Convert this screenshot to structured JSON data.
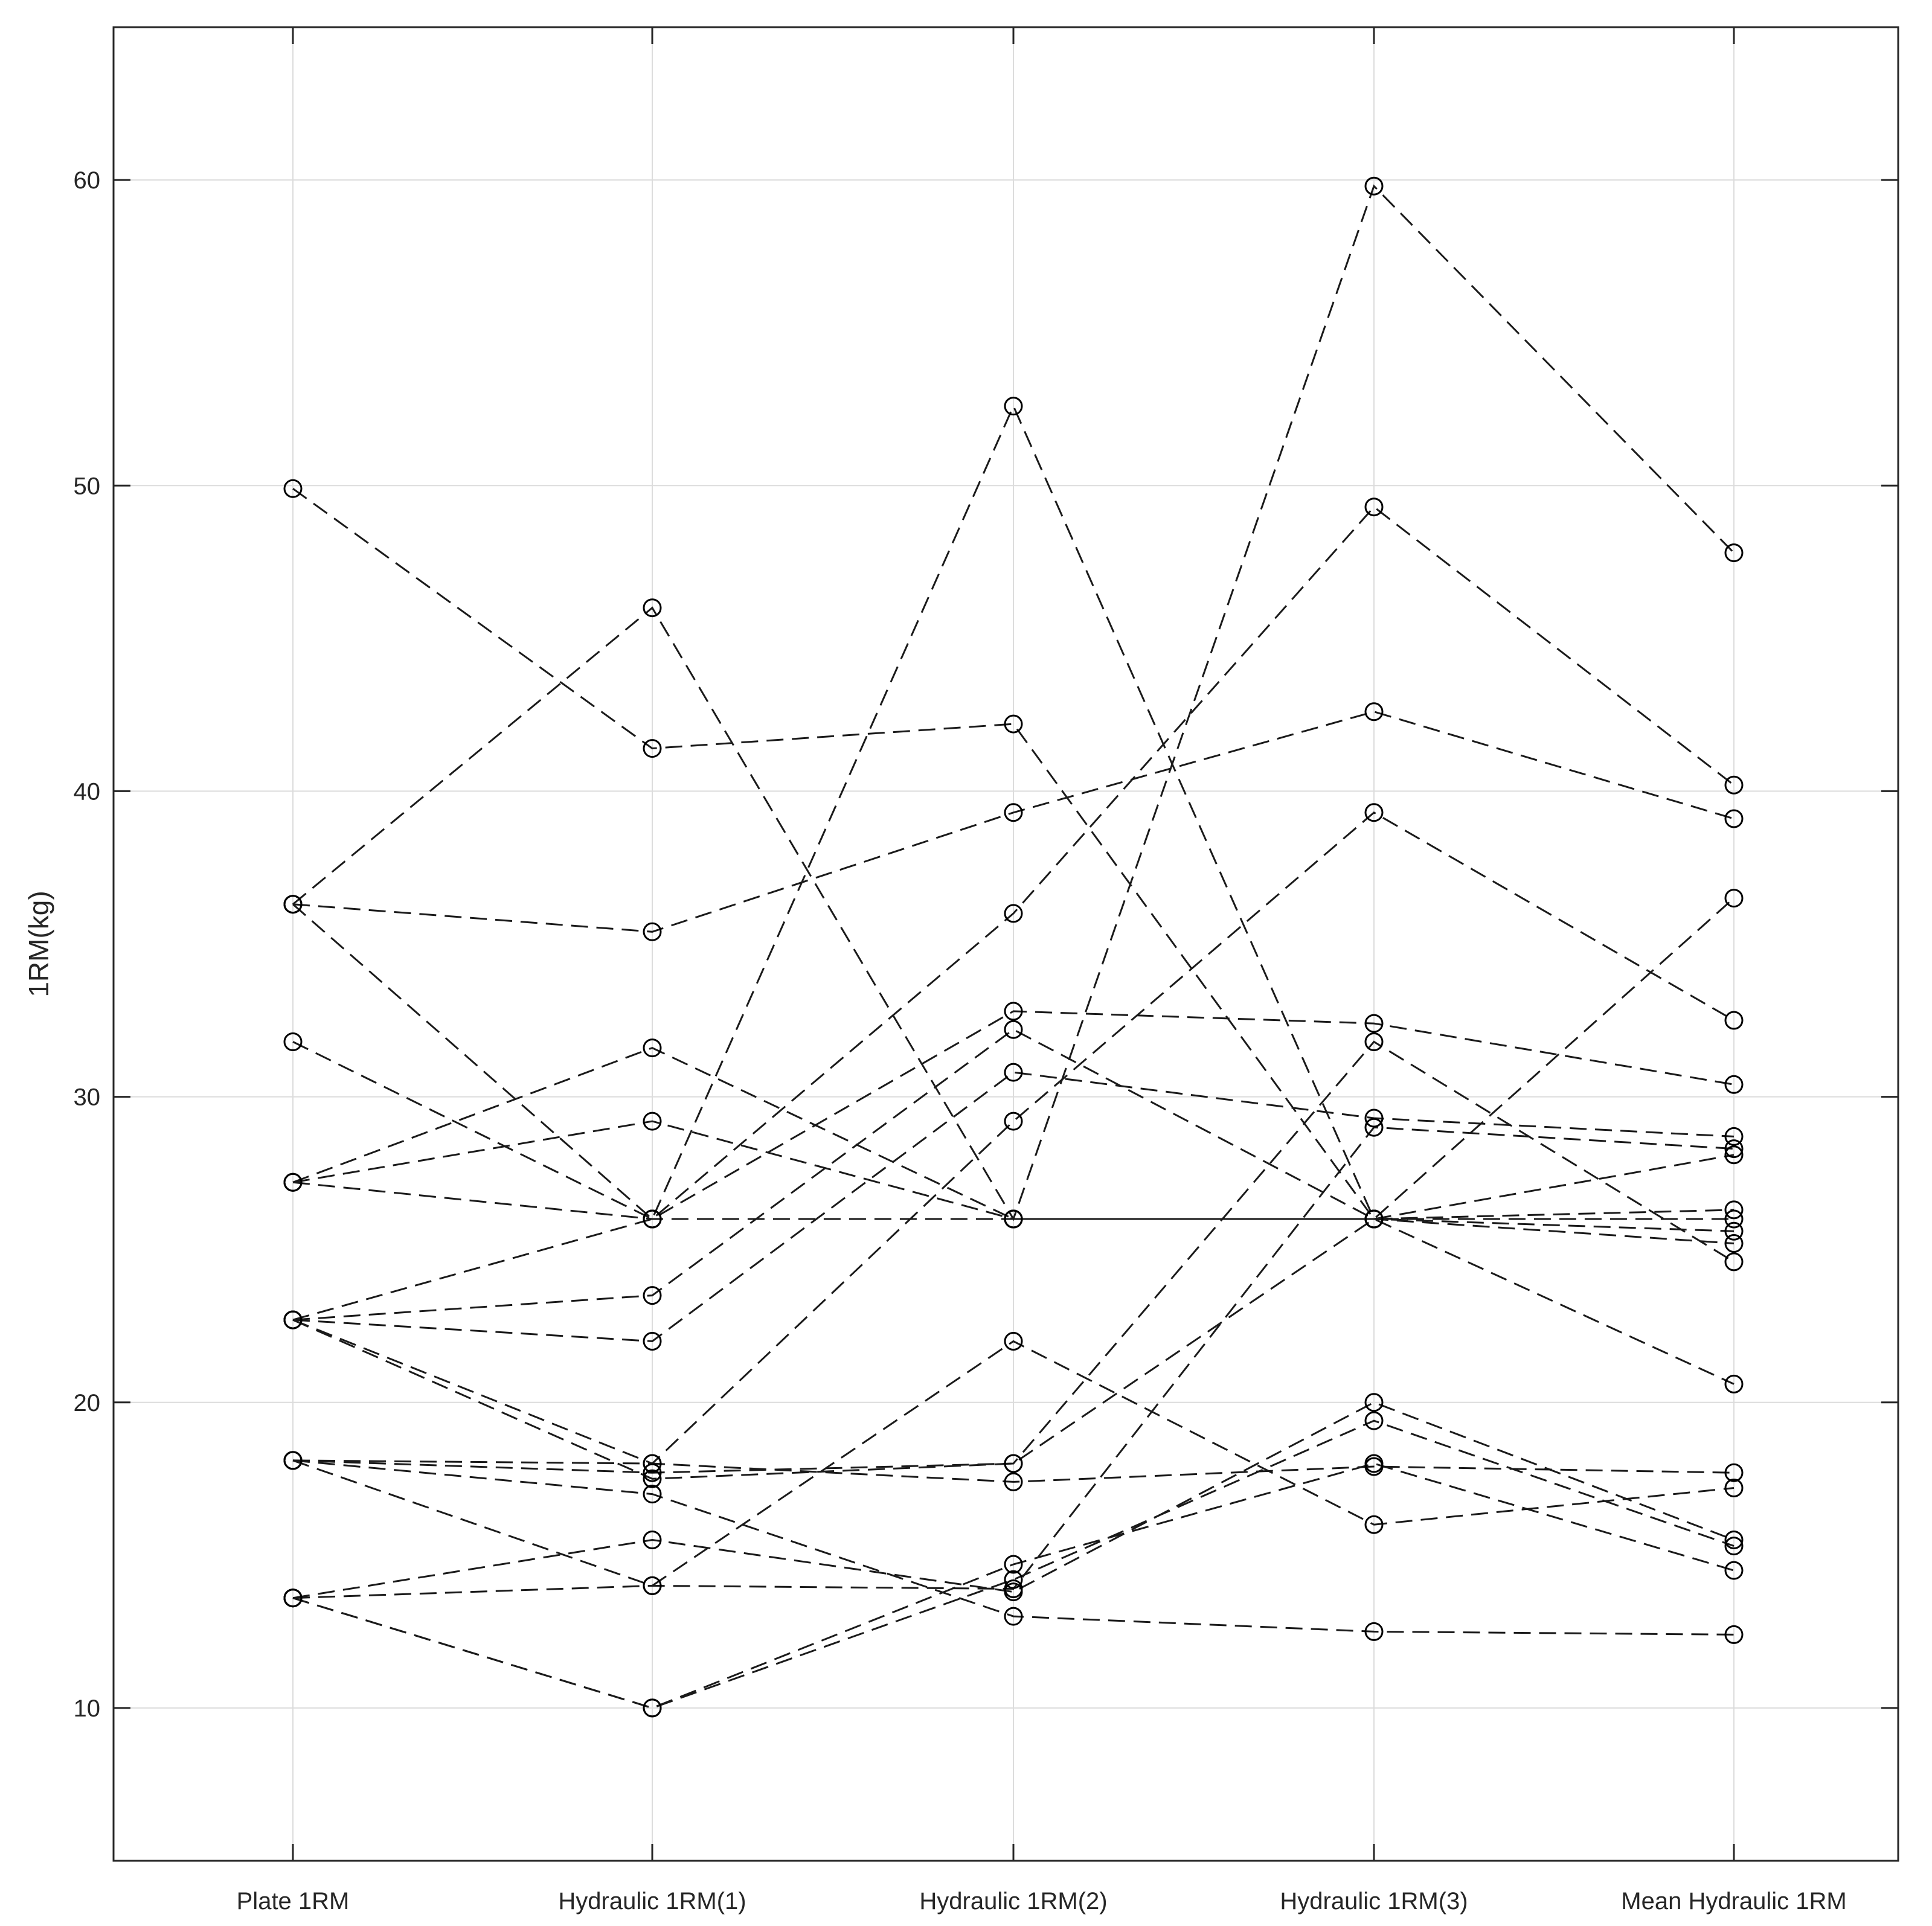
{
  "chart_data": {
    "type": "line",
    "title": "",
    "xlabel": "",
    "ylabel": "1RM(kg)",
    "ylim": [
      5,
      65
    ],
    "yticks": [
      10,
      20,
      30,
      40,
      50,
      60
    ],
    "grid": true,
    "line_style": "dashed",
    "marker": "open-circle",
    "colors": {
      "line": "#1a1a1a",
      "marker": "#000000",
      "grid": "#dcdcdc",
      "axis": "#262626"
    },
    "categories": [
      "Plate 1RM",
      "Hydraulic 1RM(1)",
      "Hydraulic 1RM(2)",
      "Hydraulic 1RM(3)",
      "Mean Hydraulic 1RM"
    ],
    "series": [
      {
        "values": [
          49.9,
          41.4,
          42.2,
          26.0,
          36.5
        ]
      },
      {
        "values": [
          36.3,
          46.0,
          26.0,
          59.8,
          47.8
        ]
      },
      {
        "values": [
          36.3,
          35.4,
          39.3,
          42.6,
          39.1
        ]
      },
      {
        "values": [
          36.3,
          26.0,
          52.6,
          26.0,
          28.1
        ]
      },
      {
        "values": [
          31.8,
          26.0,
          36.0,
          49.3,
          40.2
        ]
      },
      {
        "values": [
          27.2,
          31.6,
          26.0,
          26.0,
          25.2
        ]
      },
      {
        "values": [
          27.2,
          29.2,
          26.0,
          26.0,
          25.6
        ]
      },
      {
        "values": [
          27.2,
          26.0,
          26.0,
          26.0,
          26.0
        ]
      },
      {
        "values": [
          22.7,
          26.0,
          32.8,
          32.4,
          30.4
        ]
      },
      {
        "values": [
          22.7,
          23.5,
          32.2,
          26.0,
          26.3
        ]
      },
      {
        "values": [
          22.7,
          22.0,
          30.8,
          29.3,
          28.7
        ]
      },
      {
        "values": [
          22.7,
          18.0,
          29.2,
          39.3,
          32.5
        ]
      },
      {
        "values": [
          22.7,
          17.5,
          18.0,
          26.0,
          20.6
        ]
      },
      {
        "values": [
          18.1,
          18.0,
          17.4,
          17.9,
          17.7
        ]
      },
      {
        "values": [
          18.1,
          17.7,
          18.0,
          31.8,
          24.6
        ]
      },
      {
        "values": [
          18.1,
          14.0,
          22.0,
          16.0,
          17.2
        ]
      },
      {
        "values": [
          18.1,
          17.0,
          13.0,
          12.5,
          12.4
        ]
      },
      {
        "values": [
          13.6,
          15.5,
          13.8,
          20.0,
          15.5
        ]
      },
      {
        "values": [
          13.6,
          14.0,
          13.9,
          29.0,
          28.3
        ]
      },
      {
        "values": [
          13.6,
          10.0,
          14.2,
          19.4,
          15.3
        ]
      },
      {
        "values": [
          13.6,
          10.0,
          14.7,
          18.0,
          14.5
        ]
      }
    ]
  }
}
